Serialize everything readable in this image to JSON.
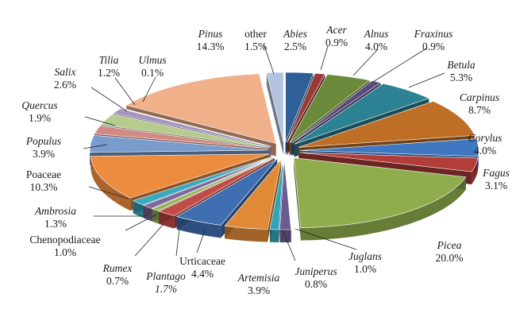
{
  "chart_data": {
    "type": "pie",
    "title": "",
    "slices": [
      {
        "label": "Abies",
        "value": 2.5,
        "display": "2.5%",
        "italic": true,
        "color": "#2e5f96"
      },
      {
        "label": "Acer",
        "value": 0.9,
        "display": "0.9%",
        "italic": true,
        "color": "#993a37"
      },
      {
        "label": "Alnus",
        "value": 4.0,
        "display": "4.0%",
        "italic": true,
        "color": "#6b8a3a"
      },
      {
        "label": "Fraxinus",
        "value": 0.9,
        "display": "0.9%",
        "italic": true,
        "color": "#5b4a7c"
      },
      {
        "label": "Betula",
        "value": 5.3,
        "display": "5.3%",
        "italic": true,
        "color": "#2c8193"
      },
      {
        "label": "Carpinus",
        "value": 8.7,
        "display": "8.7%",
        "italic": true,
        "color": "#bf6e25"
      },
      {
        "label": "Corylus",
        "value": 4.0,
        "display": "4.0%",
        "italic": true,
        "color": "#3f77c0"
      },
      {
        "label": "Fagus",
        "value": 3.1,
        "display": "3.1%",
        "italic": true,
        "color": "#b23d39"
      },
      {
        "label": "Picea",
        "value": 20.0,
        "display": "20.0%",
        "italic": true,
        "color": "#8fad4c"
      },
      {
        "label": "Juglans",
        "value": 1.0,
        "display": "1.0%",
        "italic": true,
        "color": "#6b5b93"
      },
      {
        "label": "Juniperus",
        "value": 0.8,
        "display": "0.8%",
        "italic": true,
        "color": "#31a4b8"
      },
      {
        "label": "Artemisia",
        "value": 3.9,
        "display": "3.9%",
        "italic": true,
        "color": "#e08a36"
      },
      {
        "label": "Urticaceae",
        "value": 4.4,
        "display": "4.4%",
        "italic": false,
        "color": "#3f6fb2"
      },
      {
        "label": "Plantago",
        "value": 1.7,
        "display": "1.7%",
        "italic": true,
        "color": "#c14b47"
      },
      {
        "label": "Rumex",
        "value": 0.7,
        "display": "0.7%",
        "italic": true,
        "color": "#96b457"
      },
      {
        "label": "Chenopodiaceae",
        "value": 1.0,
        "display": "1.0%",
        "italic": false,
        "color": "#7e679e"
      },
      {
        "label": "Ambrosia",
        "value": 1.3,
        "display": "1.3%",
        "italic": true,
        "color": "#3aa9be"
      },
      {
        "label": "Poaceae",
        "value": 10.3,
        "display": "10.3%",
        "italic": false,
        "color": "#ed8b3e"
      },
      {
        "label": "Populus",
        "value": 3.9,
        "display": "3.9%",
        "italic": true,
        "color": "#7a9ccc"
      },
      {
        "label": "Quercus",
        "value": 1.9,
        "display": "1.9%",
        "italic": true,
        "color": "#d28a87"
      },
      {
        "label": "Salix",
        "value": 2.6,
        "display": "2.6%",
        "italic": true,
        "color": "#b6cb8e"
      },
      {
        "label": "Tilia",
        "value": 1.2,
        "display": "1.2%",
        "italic": true,
        "color": "#a494bf"
      },
      {
        "label": "Ulmus",
        "value": 0.1,
        "display": "0.1%",
        "italic": true,
        "color": "#89c2d2"
      },
      {
        "label": "Pinus",
        "value": 14.3,
        "display": "14.3%",
        "italic": true,
        "color": "#f0b08a"
      },
      {
        "label": "other",
        "value": 1.5,
        "display": "1.5%",
        "italic": false,
        "color": "#b4c4e0"
      }
    ],
    "exploded": true,
    "three_d": true,
    "legend": "none",
    "data_labels": "category name and percentage"
  }
}
